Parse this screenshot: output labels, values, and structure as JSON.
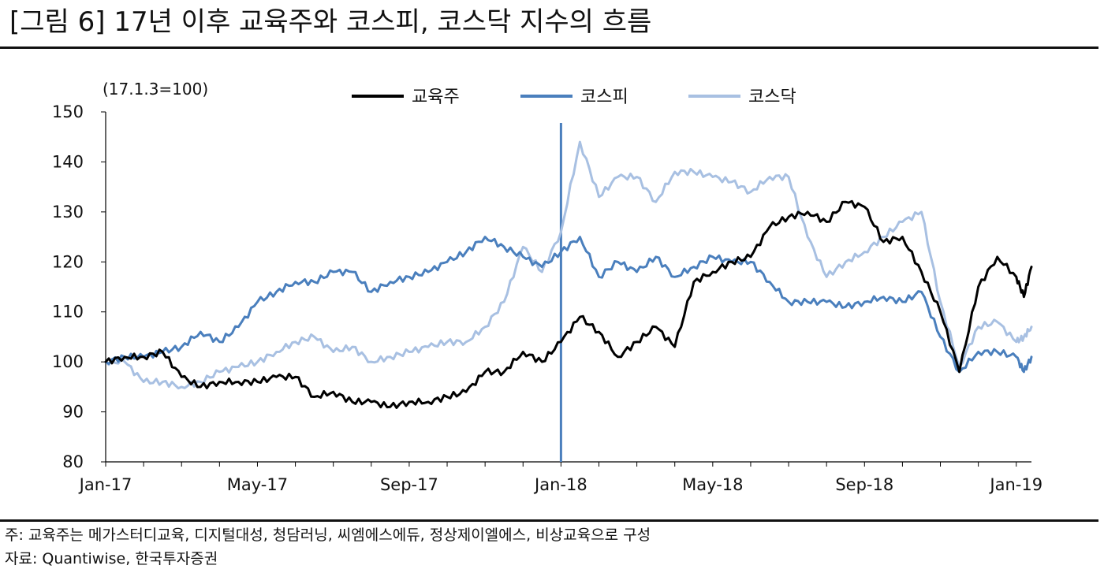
{
  "header": {
    "title": "[그림 6] 17년 이후 교육주와 코스피, 코스닥 지수의 흐름"
  },
  "footer": {
    "note": "주: 교육주는 메가스터디교육, 디지털대성, 청담러닝, 씨엠에스에듀, 정상제이엘에스, 비상교육으로 구성",
    "source": "자료: Quantiwise, 한국투자증권"
  },
  "chart_data": {
    "type": "line",
    "title": "[그림 6] 17년 이후 교육주와 코스피, 코스닥 지수의 흐름",
    "unit_label": "(17.1.3=100)",
    "ylim": [
      80,
      150
    ],
    "yticks": [
      80,
      90,
      100,
      110,
      120,
      130,
      140,
      150
    ],
    "xlim": [
      0,
      24.4
    ],
    "xticks": [
      {
        "x": 0,
        "label": "Jan-17"
      },
      {
        "x": 4,
        "label": "May-17"
      },
      {
        "x": 8,
        "label": "Sep-17"
      },
      {
        "x": 12,
        "label": "Jan-18"
      },
      {
        "x": 16,
        "label": "May-18"
      },
      {
        "x": 20,
        "label": "Sep-18"
      },
      {
        "x": 24,
        "label": "Jan-19"
      }
    ],
    "x_unit": "months since Jan-17",
    "vline": {
      "x": 12.0,
      "color": "#4a7fbd"
    },
    "legend_position": "top-center",
    "colors": {
      "edu": "#000000",
      "kospi": "#4a7fbd",
      "kosdaq": "#a8c0e2"
    },
    "series": [
      {
        "name": "교육주",
        "key": "edu",
        "x": [
          0,
          0.5,
          1,
          1.5,
          2,
          2.5,
          3,
          3.5,
          4,
          4.5,
          5,
          5.5,
          6,
          6.5,
          7,
          7.5,
          8,
          8.5,
          9,
          9.5,
          10,
          10.5,
          11,
          11.5,
          12,
          12.5,
          13,
          13.5,
          14,
          14.5,
          15,
          15.5,
          16,
          16.5,
          17,
          17.5,
          18,
          18.5,
          19,
          19.5,
          20,
          20.5,
          21,
          21.5,
          22,
          22.5,
          23,
          23.5,
          24,
          24.2,
          24.4
        ],
        "y": [
          100,
          101,
          101,
          102,
          97,
          95,
          96,
          96,
          96,
          97,
          97,
          93,
          94,
          92,
          92,
          91,
          92,
          92,
          93,
          94,
          98,
          98,
          102,
          100,
          104,
          109,
          106,
          101,
          104,
          107,
          103,
          116,
          118,
          120,
          121,
          127,
          129,
          130,
          128,
          132,
          131,
          124,
          125,
          118,
          110,
          98,
          115,
          121,
          117,
          113,
          119
        ]
      },
      {
        "name": "코스피",
        "key": "kospi",
        "x": [
          0,
          0.5,
          1,
          1.5,
          2,
          2.5,
          3,
          3.5,
          4,
          4.5,
          5,
          5.5,
          6,
          6.5,
          7,
          7.5,
          8,
          8.5,
          9,
          9.5,
          10,
          10.5,
          11,
          11.5,
          12,
          12.5,
          13,
          13.5,
          14,
          14.5,
          15,
          15.5,
          16,
          16.5,
          17,
          17.5,
          18,
          18.5,
          19,
          19.5,
          20,
          20.5,
          21,
          21.5,
          22,
          22.5,
          23,
          23.5,
          24,
          24.2,
          24.4
        ],
        "y": [
          100,
          101,
          101,
          102,
          103,
          106,
          104,
          107,
          112,
          114,
          116,
          116,
          118,
          118,
          114,
          116,
          117,
          118,
          120,
          122,
          125,
          123,
          121,
          119,
          122,
          125,
          117,
          120,
          118,
          121,
          117,
          119,
          121,
          120,
          120,
          116,
          112,
          112,
          112,
          111,
          112,
          113,
          112,
          114,
          105,
          98,
          102,
          102,
          101,
          98,
          101
        ]
      },
      {
        "name": "코스닥",
        "key": "kosdaq",
        "x": [
          0,
          0.5,
          1,
          1.5,
          2,
          2.5,
          3,
          3.5,
          4,
          4.5,
          5,
          5.5,
          6,
          6.5,
          7,
          7.5,
          8,
          8.5,
          9,
          9.5,
          10,
          10.5,
          11,
          11.5,
          12,
          12.5,
          13,
          13.5,
          14,
          14.5,
          15,
          15.5,
          16,
          16.5,
          17,
          17.5,
          18,
          18.5,
          19,
          19.5,
          20,
          20.5,
          21,
          21.5,
          22,
          22.5,
          23,
          23.5,
          24,
          24.2,
          24.4
        ],
        "y": [
          100,
          100,
          96,
          96,
          95,
          96,
          98,
          99,
          100,
          102,
          104,
          105,
          102,
          103,
          100,
          101,
          102,
          103,
          104,
          104,
          107,
          112,
          123,
          118,
          126,
          144,
          133,
          137,
          137,
          132,
          138,
          138,
          137,
          136,
          134,
          137,
          137,
          125,
          117,
          120,
          122,
          125,
          128,
          130,
          112,
          99,
          107,
          108,
          104,
          105,
          107
        ]
      }
    ]
  }
}
